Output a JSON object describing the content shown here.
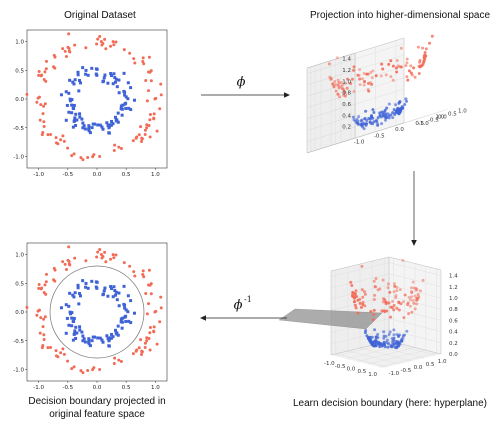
{
  "panels": {
    "original": {
      "title": "Original Dataset"
    },
    "projection": {
      "title": "Projection into higher-dimensional space"
    },
    "learn": {
      "title": "Learn decision boundary (here: hyperplane)"
    },
    "boundary": {
      "title_line1": "Decision boundary projected in",
      "title_line2": "original feature space"
    }
  },
  "arrows": {
    "phi": "ϕ",
    "phi_inverse_base": "ϕ",
    "phi_inverse_sup": "-1"
  },
  "axes2d": {
    "xticks": [
      "-1.0",
      "-0.5",
      "0.0",
      "0.5",
      "1.0"
    ],
    "yticks": [
      "1.0",
      "0.5",
      "0.0",
      "-0.5",
      "-1.0"
    ]
  },
  "axes3d_top": {
    "zticks": [
      "1.4",
      "1.2",
      "1.0",
      "0.8",
      "0.6",
      "0.4",
      "0.2"
    ],
    "xticks": [
      "-1.0",
      "-0.5",
      "0.0",
      "0.5",
      "1.0"
    ],
    "yticks": [
      "1.0",
      "0.5",
      "0.0",
      "-0.5",
      "-1.0"
    ]
  },
  "axes3d_bottom": {
    "zticks": [
      "1.4",
      "1.2",
      "1.0",
      "0.8",
      "0.6",
      "0.4",
      "0.2",
      "0.0"
    ],
    "xticks": [
      "-1.0",
      "-0.5",
      "0.0",
      "0.5",
      "1.0"
    ],
    "yticks": [
      "-1.0",
      "-0.5",
      "0.0",
      "0.5",
      "1.0"
    ]
  },
  "colors": {
    "outer_class": "#f26b57",
    "inner_class": "#3f63d6",
    "hyperplane": "#8c8c8c",
    "boundary_circle": "#777777"
  }
}
